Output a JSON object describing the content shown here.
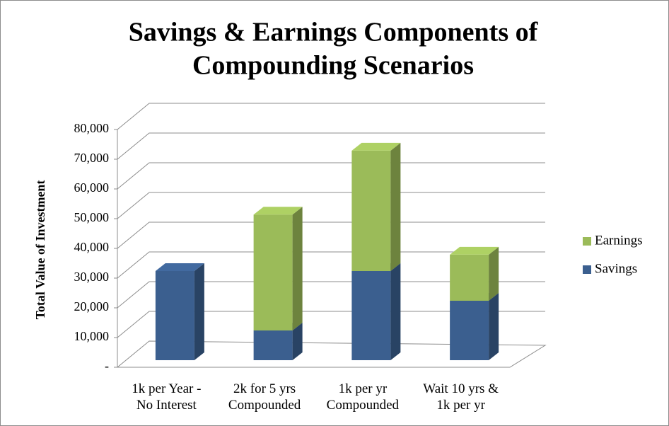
{
  "chart_data": {
    "type": "bar3d_stacked",
    "title": "Savings & Earnings Components of Compounding Scenarios",
    "y_label": "Total Value of Investment",
    "categories": [
      "1k per Year -\nNo Interest",
      "2k for 5 yrs\nCompounded",
      "1k per yr\nCompounded",
      "Wait 10 yrs &\n1k per yr"
    ],
    "series": [
      {
        "name": "Savings",
        "color": "#3b5f8f",
        "values": [
          30000,
          10000,
          30000,
          20000
        ]
      },
      {
        "name": "Earnings",
        "color": "#9bbb59",
        "values": [
          0,
          39000,
          40500,
          15500
        ]
      }
    ],
    "ylim": [
      0,
      80000
    ],
    "yticks": [
      {
        "value": 0,
        "label": "-"
      },
      {
        "value": 10000,
        "label": "10,000"
      },
      {
        "value": 20000,
        "label": "20,000"
      },
      {
        "value": 30000,
        "label": "30,000"
      },
      {
        "value": 40000,
        "label": "40,000"
      },
      {
        "value": 50000,
        "label": "50,000"
      },
      {
        "value": 60000,
        "label": "60,000"
      },
      {
        "value": 70000,
        "label": "70,000"
      },
      {
        "value": 80000,
        "label": "80,000"
      }
    ],
    "grid": true,
    "legend": "right"
  }
}
